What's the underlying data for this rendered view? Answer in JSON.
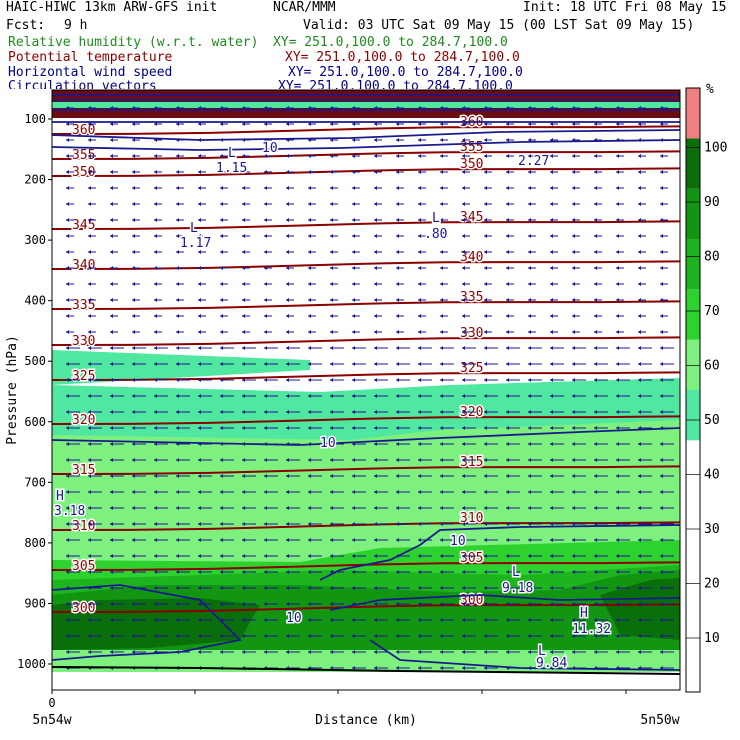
{
  "header": {
    "model_line": "HAIC-HIWC 13km ARW-GFS init",
    "org": "NCAR/MMM",
    "init": "Init: 18 UTC Fri 08 May 15",
    "fcst_label": "Fcst:",
    "fcst_value": "9 h",
    "valid": "Valid: 03 UTC Sat 09 May 15 (00 LST Sat 09 May 15)",
    "fields": [
      {
        "name": "Relative humidity (w.r.t. water)",
        "xy": "XY= 251.0,100.0 to 284.7,100.0",
        "color": "#1f8a1f"
      },
      {
        "name": "Potential temperature",
        "xy": "XY= 251.0,100.0 to 284.7,100.0",
        "color": "#8b0000"
      },
      {
        "name": "Horizontal wind speed",
        "xy": "XY= 251.0,100.0 to 284.7,100.0",
        "color": "#00008b"
      },
      {
        "name": "Circulation vectors",
        "xy": "XY= 251.0,100.0 to 284.7,100.0",
        "color": "#00008b"
      }
    ]
  },
  "colorbar": {
    "unit": "%",
    "ticks": [
      "10",
      "20",
      "30",
      "40",
      "50",
      "60",
      "70",
      "80",
      "90",
      "100"
    ],
    "colors": [
      "#ffffff",
      "#ffffff",
      "#ffffff",
      "#ffffff",
      "#ffffff",
      "#50e8a0",
      "#7df07d",
      "#2ed22e",
      "#1eb41e",
      "#129612",
      "#0a6e0a",
      "#f08080"
    ]
  },
  "chart_data": {
    "type": "cross-section",
    "ylabel": "Pressure (hPa)",
    "xlabel": "Distance (km)",
    "y_ticks": [
      100,
      200,
      300,
      400,
      500,
      600,
      700,
      800,
      900,
      1000
    ],
    "x_start_tick": "0",
    "x_left_label": "5n54w",
    "x_right_label": "5n50w",
    "theta_contours": [
      {
        "value": 300,
        "label": "300"
      },
      {
        "value": 305,
        "label": "305"
      },
      {
        "value": 310,
        "label": "310"
      },
      {
        "value": 315,
        "label": "315"
      },
      {
        "value": 320,
        "label": "320"
      },
      {
        "value": 325,
        "label": "325"
      },
      {
        "value": 330,
        "label": "330"
      },
      {
        "value": 335,
        "label": "335"
      },
      {
        "value": 340,
        "label": "340"
      },
      {
        "value": 345,
        "label": "345"
      },
      {
        "value": 350,
        "label": "350"
      },
      {
        "value": 355,
        "label": "355"
      },
      {
        "value": 360,
        "label": "360"
      }
    ],
    "wind_labels": [
      {
        "text": "10"
      },
      {
        "text": "L"
      },
      {
        "text": "1.15"
      },
      {
        "text": "L"
      },
      {
        "text": "1.17"
      },
      {
        "text": "L"
      },
      {
        "text": ".80"
      },
      {
        "text": "2.27"
      },
      {
        "text": "10"
      },
      {
        "text": "H"
      },
      {
        "text": "3.18"
      },
      {
        "text": "10"
      },
      {
        "text": "L"
      },
      {
        "text": "9.18"
      },
      {
        "text": "10"
      },
      {
        "text": "H"
      },
      {
        "text": "11.32"
      },
      {
        "text": "L"
      },
      {
        "text": "9.84"
      }
    ]
  }
}
